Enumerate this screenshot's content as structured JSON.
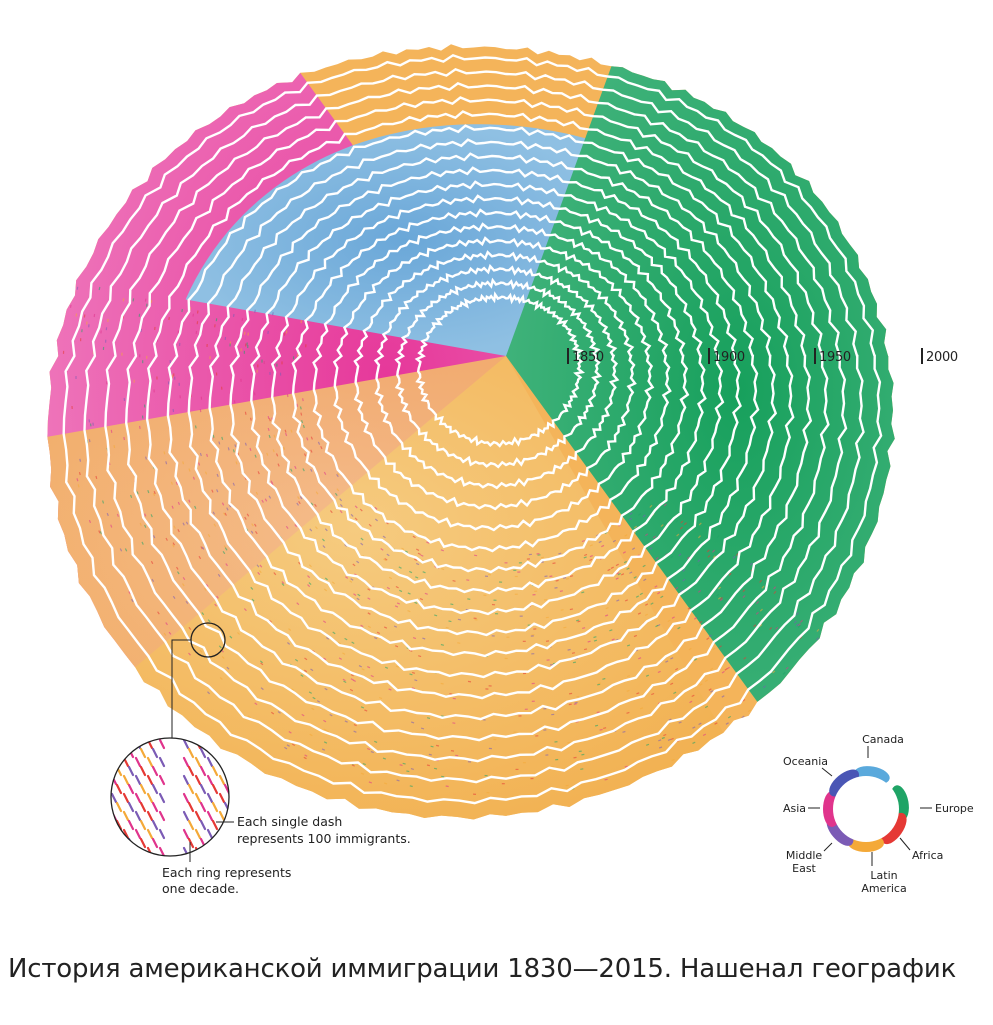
{
  "chart_data": {
    "type": "radial-ring",
    "unit_note": "Each single dash represents 100 immigrants.",
    "ring_note": "Each ring represents one decade.",
    "decade_labels": [
      "1850",
      "1900",
      "1950",
      "2000"
    ],
    "regions": [
      {
        "name": "Canada",
        "color": "#5aa9dc"
      },
      {
        "name": "Europe",
        "color": "#1fa466"
      },
      {
        "name": "Africa",
        "color": "#e53935"
      },
      {
        "name": "Latin America",
        "color": "#f4a938"
      },
      {
        "name": "Middle East",
        "color": "#7b5bb5"
      },
      {
        "name": "Asia",
        "color": "#e0348c"
      },
      {
        "name": "Oceania",
        "color": "#4a56b5"
      }
    ]
  },
  "legend": {
    "canada": "Canada",
    "europe": "Europe",
    "africa": "Africa",
    "latin_america_1": "Latin",
    "latin_america_2": "America",
    "middle_east_1": "Middle",
    "middle_east_2": "East",
    "asia": "Asia",
    "oceania": "Oceania"
  },
  "inset": {
    "dash_note_1": "Each single dash",
    "dash_note_2": "represents 100 immigrants.",
    "ring_note_1": "Each ring represents",
    "ring_note_2": "one decade."
  },
  "caption": "История американской иммиграции 1830—2015. Нашенал географик"
}
